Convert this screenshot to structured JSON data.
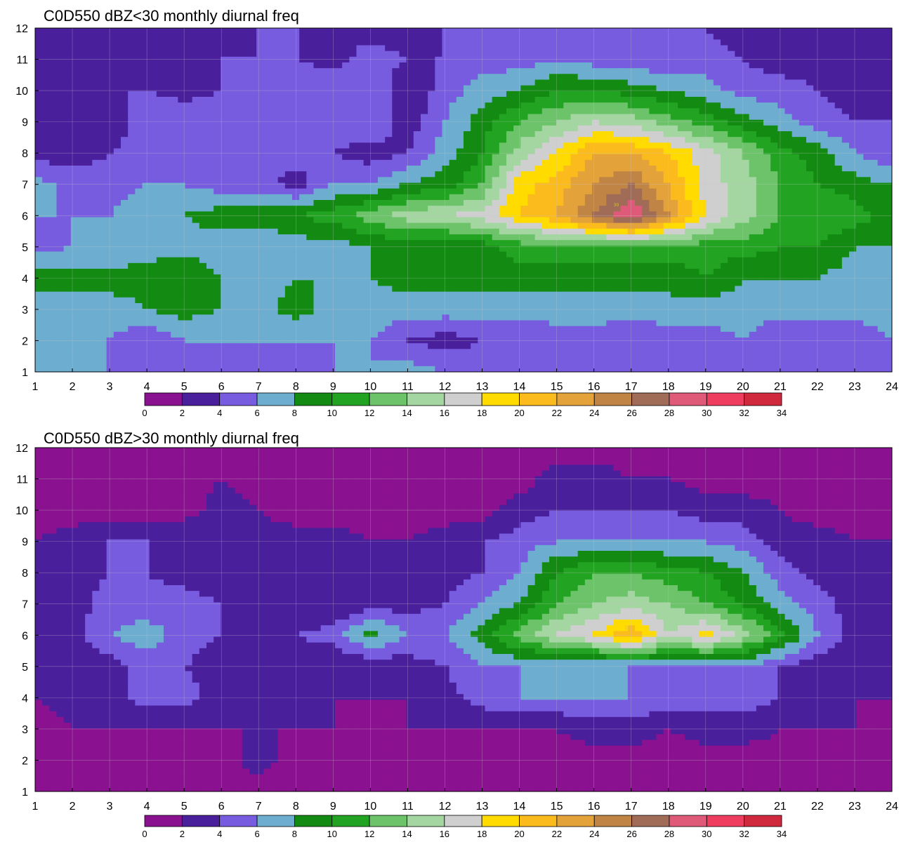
{
  "colors": {
    "levels": [
      "#8a1190",
      "#4a1f9c",
      "#785ce0",
      "#6daed0",
      "#138a12",
      "#22a422",
      "#6cc36a",
      "#a3d6a0",
      "#cfcfcf",
      "#ffdb00",
      "#fbbb1c",
      "#e3a33a",
      "#c08545",
      "#a06c58",
      "#de5a78",
      "#ef3d60",
      "#d0283c"
    ],
    "contour": "#e3a845",
    "grid": "#c8c8c8"
  },
  "chart_data": [
    {
      "type": "heatmap",
      "title": "C0D550 dBZ<30 monthly diurnal freq",
      "xlim": [
        1,
        24
      ],
      "ylim": [
        1,
        12
      ],
      "x_ticks": [
        "1",
        "2",
        "3",
        "4",
        "5",
        "6",
        "7",
        "8",
        "9",
        "10",
        "11",
        "12",
        "13",
        "14",
        "15",
        "16",
        "17",
        "18",
        "19",
        "20",
        "21",
        "22",
        "23",
        "24"
      ],
      "y_ticks": [
        "1",
        "2",
        "3",
        "4",
        "5",
        "6",
        "7",
        "8",
        "9",
        "10",
        "11",
        "12"
      ],
      "levels": [
        0,
        2,
        4,
        6,
        8,
        10,
        12,
        14,
        16,
        18,
        20,
        22,
        24,
        26,
        28,
        30,
        32,
        34
      ],
      "colorbar_ticks": [
        "0",
        "2",
        "4",
        "6",
        "8",
        "10",
        "12",
        "14",
        "16",
        "18",
        "20",
        "22",
        "24",
        "26",
        "28",
        "30",
        "32",
        "34"
      ],
      "grid": true,
      "peak": {
        "x": 16.6,
        "y": 6.3,
        "value": 30.5
      },
      "frequency_grid": [
        [
          6,
          6,
          6,
          5,
          4,
          4,
          5,
          5,
          6,
          6,
          7,
          6,
          5,
          5,
          5,
          5,
          6,
          5,
          4,
          6,
          5,
          5,
          5,
          6
        ],
        [
          6,
          6,
          6,
          4,
          6,
          6,
          6,
          6,
          6,
          6,
          4,
          3,
          4,
          4,
          5,
          5,
          4,
          5,
          5,
          6,
          4,
          4,
          4,
          6
        ],
        [
          7,
          7,
          7,
          8,
          9,
          8,
          7,
          9,
          7,
          7,
          7,
          7,
          7,
          7,
          7,
          7,
          7,
          7,
          7,
          7,
          7,
          7,
          7,
          8
        ],
        [
          9,
          9,
          9,
          9,
          10,
          8,
          7,
          8,
          8,
          8,
          9,
          9,
          9,
          9,
          9,
          9,
          9,
          9,
          10,
          8,
          8,
          8,
          7,
          7
        ],
        [
          5,
          6,
          6,
          7,
          7,
          7,
          6,
          7,
          7,
          8,
          9,
          8,
          9,
          11,
          11,
          11,
          11,
          11,
          11,
          11,
          10,
          10,
          8,
          8
        ],
        [
          6,
          6,
          6,
          8,
          8,
          9,
          9,
          10,
          11,
          13,
          15,
          16,
          17,
          20,
          22,
          26,
          30,
          24,
          18,
          15,
          12,
          12,
          11,
          9
        ],
        [
          7,
          5,
          5,
          6,
          6,
          5,
          5,
          3,
          6,
          6,
          8,
          9,
          12,
          19,
          21,
          24,
          26,
          22,
          17,
          15,
          12,
          10,
          9,
          8
        ],
        [
          3,
          3,
          4,
          5,
          5,
          4,
          4,
          5,
          4,
          3,
          4,
          7,
          10,
          15,
          18,
          22,
          22,
          20,
          17,
          14,
          11,
          9,
          6,
          4
        ],
        [
          3,
          2,
          2,
          6,
          6,
          5,
          5,
          4,
          5,
          6,
          3,
          6,
          9,
          12,
          14,
          16,
          15,
          13,
          11,
          9,
          7,
          5,
          4,
          4
        ],
        [
          4,
          4,
          4,
          4,
          3,
          4,
          5,
          6,
          6,
          6,
          2,
          5,
          7,
          8,
          10,
          10,
          9,
          8,
          7,
          5,
          5,
          4,
          3,
          3
        ],
        [
          3,
          3,
          3,
          3,
          4,
          4,
          4,
          4,
          3,
          5,
          4,
          4,
          5,
          5,
          6,
          5,
          5,
          4,
          5,
          4,
          3,
          3,
          3,
          3
        ],
        [
          4,
          3,
          3,
          3,
          3,
          3,
          4,
          4,
          4,
          3,
          3,
          4,
          4,
          4,
          4,
          4,
          4,
          4,
          4,
          3,
          3,
          3,
          3,
          3
        ]
      ]
    },
    {
      "type": "heatmap",
      "title": "C0D550 dBZ>30 monthly diurnal freq",
      "xlim": [
        1,
        24
      ],
      "ylim": [
        1,
        12
      ],
      "x_ticks": [
        "1",
        "2",
        "3",
        "4",
        "5",
        "6",
        "7",
        "8",
        "9",
        "10",
        "11",
        "12",
        "13",
        "14",
        "15",
        "16",
        "17",
        "18",
        "19",
        "20",
        "21",
        "22",
        "23",
        "24"
      ],
      "y_ticks": [
        "1",
        "2",
        "3",
        "4",
        "5",
        "6",
        "7",
        "8",
        "9",
        "10",
        "11",
        "12"
      ],
      "levels": [
        0,
        2,
        4,
        6,
        8,
        10,
        12,
        14,
        16,
        18,
        20,
        22,
        24,
        26,
        28,
        30,
        32,
        34
      ],
      "colorbar_ticks": [
        "0",
        "2",
        "4",
        "6",
        "8",
        "10",
        "12",
        "14",
        "16",
        "18",
        "20",
        "22",
        "24",
        "26",
        "28",
        "30",
        "32",
        "34"
      ],
      "grid": true,
      "peak": {
        "x": 16.9,
        "y": 6.2,
        "value": 21
      },
      "frequency_grid": [
        [
          1,
          1,
          1,
          1,
          1,
          1,
          1,
          1,
          1,
          1,
          1,
          1,
          1,
          1,
          1,
          1,
          1,
          1,
          1,
          1,
          1,
          1,
          1,
          1
        ],
        [
          1,
          1,
          1,
          1,
          1,
          1,
          3,
          1,
          1,
          1,
          1,
          1,
          1,
          1,
          1,
          1,
          1,
          1,
          1,
          1,
          1,
          1,
          1,
          1
        ],
        [
          1,
          2,
          2,
          2,
          2,
          2,
          2,
          2,
          2,
          1,
          2,
          2,
          2,
          2,
          2,
          3,
          3,
          2,
          3,
          3,
          2,
          2,
          2,
          1
        ],
        [
          2,
          3,
          3,
          5,
          5,
          3,
          2,
          2,
          2,
          2,
          2,
          3,
          5,
          6,
          6,
          6,
          6,
          5,
          5,
          5,
          4,
          3,
          2,
          2
        ],
        [
          2,
          3,
          3,
          5,
          4,
          3,
          2,
          2,
          2,
          2,
          3,
          4,
          6,
          6,
          6,
          6,
          6,
          6,
          6,
          6,
          4,
          3,
          2,
          2
        ],
        [
          2,
          3,
          6,
          7,
          5,
          4,
          3,
          4,
          5,
          9,
          6,
          6,
          9,
          13,
          16,
          18,
          22,
          16,
          19,
          15,
          11,
          6,
          3,
          2
        ],
        [
          2,
          3,
          5,
          5,
          5,
          4,
          3,
          2,
          2,
          3,
          3,
          4,
          6,
          8,
          12,
          14,
          15,
          14,
          12,
          10,
          7,
          5,
          3,
          2
        ],
        [
          2,
          3,
          4,
          4,
          3,
          2,
          2,
          2,
          2,
          2,
          2,
          3,
          4,
          6,
          10,
          12,
          12,
          11,
          10,
          8,
          5,
          3,
          2,
          2
        ],
        [
          2,
          3,
          4,
          4,
          4,
          3,
          3,
          3,
          3,
          2,
          2,
          3,
          4,
          5,
          6,
          6,
          6,
          6,
          6,
          5,
          3,
          3,
          2,
          2
        ],
        [
          1,
          1,
          1,
          1,
          1,
          3,
          2,
          1,
          1,
          1,
          1,
          1,
          1,
          3,
          4,
          4,
          4,
          4,
          3,
          3,
          2,
          1,
          1,
          1
        ],
        [
          1,
          1,
          1,
          1,
          1,
          2,
          1,
          1,
          2,
          2,
          1,
          1,
          1,
          1,
          3,
          3,
          2,
          2,
          1,
          1,
          1,
          1,
          1,
          1
        ],
        [
          1,
          1,
          1,
          1,
          1,
          1,
          1,
          1,
          1,
          1,
          1,
          1,
          1,
          1,
          1,
          1,
          1,
          1,
          1,
          1,
          1,
          1,
          1,
          1
        ]
      ]
    }
  ]
}
